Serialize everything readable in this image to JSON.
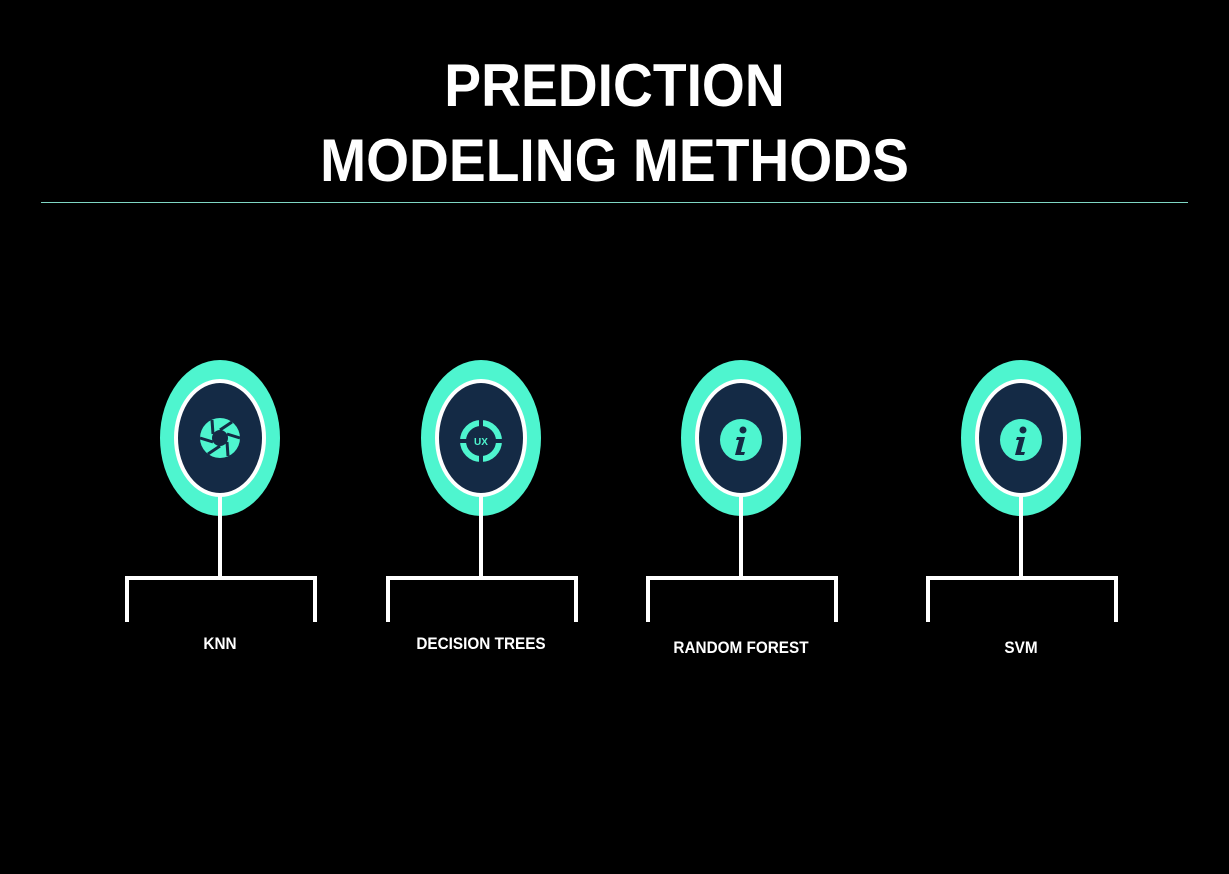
{
  "title": {
    "line1": "PREDICTION",
    "line2": "MODELING METHODS"
  },
  "colors": {
    "background": "#000000",
    "accent": "#4ef5cf",
    "inner_circle": "#142a45",
    "connector": "#ffffff",
    "divider": "#7fd6c4"
  },
  "methods": [
    {
      "label": "KNN",
      "icon": "shutter-icon"
    },
    {
      "label": "DECISION TREES",
      "icon": "ux-target-icon",
      "icon_text": "UX"
    },
    {
      "label": "RANDOM FOREST",
      "icon": "info-icon"
    },
    {
      "label": "SVM",
      "icon": "info-icon"
    }
  ]
}
